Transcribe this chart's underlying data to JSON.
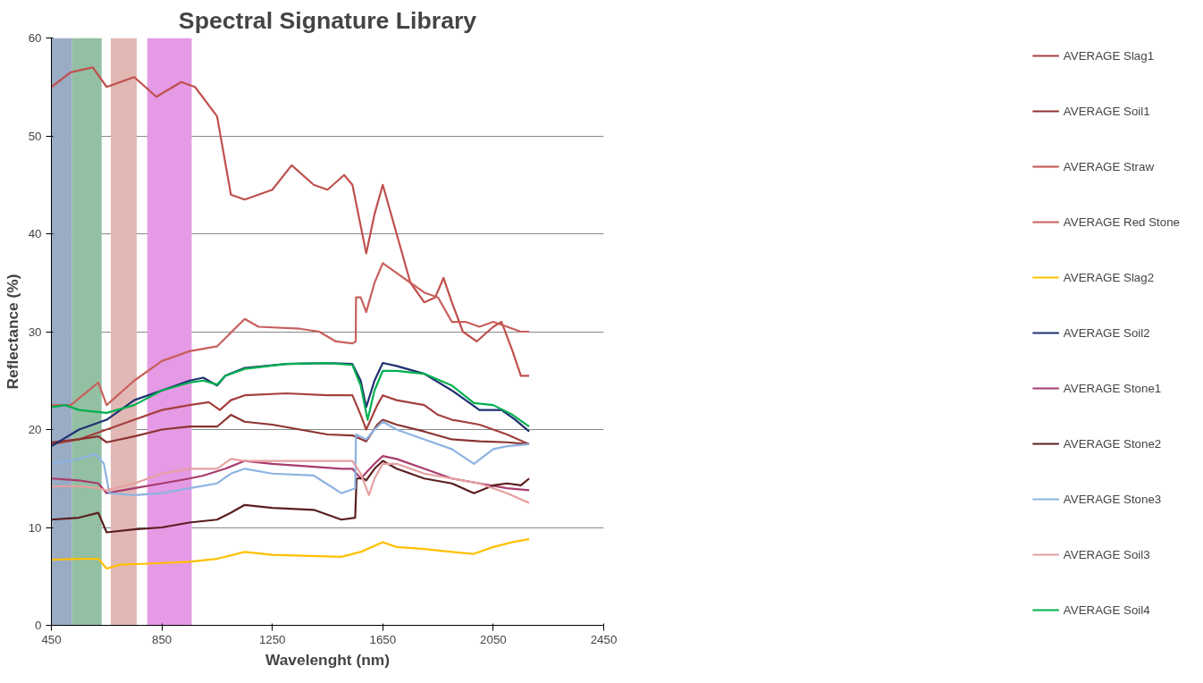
{
  "chart_data": {
    "type": "line",
    "title": "Spectral Signature Library",
    "xlabel": "Wavelenght (nm)",
    "ylabel": "Reflectance (%)",
    "xlim": [
      450,
      2450
    ],
    "xticks": [
      450,
      850,
      1250,
      1650,
      2050,
      2450
    ],
    "ylim": [
      0,
      60
    ],
    "yticks": [
      0,
      10,
      20,
      30,
      40,
      50,
      60
    ],
    "grid": "y",
    "legend": "right",
    "line_style": "solid",
    "bands": [
      {
        "axis": "x",
        "from": 450,
        "to": 525,
        "color": "#9aabc4"
      },
      {
        "axis": "x",
        "from": 525,
        "to": 632,
        "color": "#93bfa3"
      },
      {
        "axis": "x",
        "from": 665,
        "to": 759,
        "color": "#e2b8b5"
      },
      {
        "axis": "x",
        "from": 797,
        "to": 958,
        "color": "#e59ae5"
      }
    ],
    "series": [
      {
        "name": "AVERAGE Slag1",
        "color": "#a5403d",
        "x": [
          450,
          550,
          650,
          750,
          850,
          950,
          1020,
          1060,
          1100,
          1150,
          1300,
          1450,
          1540,
          1570,
          1590,
          1630,
          1650,
          1700,
          1800,
          1850,
          1900,
          2000,
          2100,
          2180
        ],
        "values": [
          18.5,
          19,
          20,
          21,
          22,
          22.5,
          22.8,
          22,
          23,
          23.5,
          23.7,
          23.5,
          23.5,
          21.5,
          20,
          22.5,
          23.5,
          23,
          22.5,
          21.5,
          21,
          20.5,
          19.5,
          18.5
        ]
      },
      {
        "name": "AVERAGE Soil1",
        "color": "#8b3330",
        "x": [
          450,
          550,
          620,
          650,
          750,
          850,
          950,
          1050,
          1100,
          1150,
          1250,
          1350,
          1450,
          1540,
          1590,
          1630,
          1650,
          1700,
          1800,
          1900,
          2000,
          2100,
          2180
        ],
        "values": [
          18.7,
          19,
          19.3,
          18.7,
          19.3,
          20,
          20.3,
          20.3,
          21.5,
          20.8,
          20.5,
          20,
          19.5,
          19.4,
          18.8,
          20.5,
          21,
          20.5,
          19.8,
          19,
          18.8,
          18.7,
          18.5
        ]
      },
      {
        "name": "AVERAGE Straw",
        "color": "#c0504d",
        "x": [
          450,
          520,
          600,
          650,
          750,
          830,
          920,
          970,
          1050,
          1100,
          1150,
          1250,
          1320,
          1400,
          1450,
          1510,
          1540,
          1590,
          1620,
          1650,
          1700,
          1750,
          1800,
          1840,
          1870,
          1900,
          1940,
          1990,
          2050,
          2080,
          2120,
          2150,
          2180
        ],
        "values": [
          55,
          56.5,
          57,
          55,
          56,
          54,
          55.5,
          55,
          52,
          44,
          43.5,
          44.5,
          47,
          45,
          44.5,
          46,
          45,
          38,
          42,
          45,
          40,
          35,
          33,
          33.5,
          35.5,
          33,
          30,
          29,
          30.5,
          31,
          28,
          25.5,
          25.5
        ]
      },
      {
        "name": "AVERAGE Red Stone",
        "color": "#c8605c",
        "x": [
          450,
          520,
          620,
          650,
          750,
          850,
          950,
          1050,
          1150,
          1200,
          1350,
          1420,
          1480,
          1540,
          1552,
          1553,
          1570,
          1590,
          1620,
          1650,
          1700,
          1750,
          1800,
          1850,
          1900,
          1950,
          2000,
          2050,
          2100,
          2150,
          2180
        ],
        "values": [
          22.5,
          22.5,
          24.8,
          22.5,
          25,
          27,
          28,
          28.5,
          31.3,
          30.5,
          30.3,
          30,
          29,
          28.8,
          29,
          33.5,
          33.5,
          32,
          35,
          37,
          36,
          35,
          34,
          33.5,
          31,
          31,
          30.5,
          31,
          30.5,
          30,
          30
        ]
      },
      {
        "name": "AVERAGE Slag2",
        "color": "#ffc000",
        "x": [
          450,
          550,
          620,
          650,
          700,
          800,
          950,
          1050,
          1150,
          1250,
          1500,
          1570,
          1650,
          1700,
          1800,
          1900,
          1980,
          2050,
          2120,
          2180
        ],
        "values": [
          6.7,
          6.8,
          6.8,
          5.8,
          6.2,
          6.3,
          6.5,
          6.8,
          7.5,
          7.2,
          7,
          7.5,
          8.5,
          8,
          7.8,
          7.5,
          7.3,
          8,
          8.5,
          8.8
        ]
      },
      {
        "name": "AVERAGE Soil2",
        "color": "#1f3070",
        "x": [
          450,
          550,
          650,
          750,
          850,
          950,
          1000,
          1050,
          1080,
          1150,
          1300,
          1450,
          1540,
          1570,
          1590,
          1620,
          1650,
          1700,
          1800,
          1900,
          1950,
          2000,
          2080,
          2130,
          2180
        ],
        "values": [
          18.3,
          20,
          21,
          23,
          24,
          25,
          25.3,
          24.5,
          25.5,
          26.3,
          26.7,
          26.8,
          26.7,
          25,
          22.3,
          25,
          26.8,
          26.5,
          25.7,
          24,
          23,
          22,
          22,
          21,
          19.8
        ]
      },
      {
        "name": "AVERAGE Stone1",
        "color": "#a83c6c",
        "x": [
          450,
          550,
          620,
          650,
          750,
          850,
          950,
          1000,
          1080,
          1150,
          1250,
          1400,
          1500,
          1540,
          1570,
          1620,
          1650,
          1700,
          1800,
          1900,
          2000,
          2100,
          2180
        ],
        "values": [
          15,
          14.8,
          14.5,
          13.5,
          14,
          14.5,
          15,
          15.3,
          16,
          16.8,
          16.5,
          16.2,
          16,
          16,
          15,
          16.5,
          17.3,
          17,
          16,
          15,
          14.5,
          14,
          13.8
        ]
      },
      {
        "name": "AVERAGE Stone2",
        "color": "#5a1e1e",
        "x": [
          450,
          550,
          620,
          650,
          750,
          850,
          950,
          1050,
          1100,
          1150,
          1250,
          1400,
          1500,
          1550,
          1555,
          1580,
          1590,
          1620,
          1650,
          1700,
          1800,
          1900,
          1980,
          2050,
          2100,
          2150,
          2180
        ],
        "values": [
          10.8,
          11,
          11.5,
          9.5,
          9.8,
          10,
          10.5,
          10.8,
          11.5,
          12.3,
          12,
          11.8,
          10.8,
          11,
          15,
          15,
          14.8,
          16,
          16.8,
          16,
          15,
          14.5,
          13.5,
          14.3,
          14.5,
          14.3,
          15
        ]
      },
      {
        "name": "AVERAGE Stone3",
        "color": "#8db3e2",
        "x": [
          450,
          550,
          610,
          640,
          660,
          750,
          850,
          950,
          1050,
          1100,
          1150,
          1250,
          1400,
          1500,
          1550,
          1553,
          1590,
          1620,
          1650,
          1700,
          1800,
          1900,
          1980,
          2050,
          2100,
          2180
        ],
        "values": [
          16.5,
          17,
          17.5,
          16.5,
          13.5,
          13.3,
          13.5,
          14,
          14.5,
          15.5,
          16,
          15.5,
          15.3,
          13.5,
          14,
          19.5,
          19,
          20,
          20.8,
          20,
          19,
          18,
          16.5,
          18,
          18.3,
          18.5
        ]
      },
      {
        "name": "AVERAGE Soil3",
        "color": "#e6a0a0",
        "x": [
          450,
          550,
          620,
          650,
          750,
          850,
          950,
          1050,
          1100,
          1150,
          1300,
          1450,
          1540,
          1570,
          1600,
          1620,
          1650,
          1700,
          1800,
          1900,
          2000,
          2100,
          2180
        ],
        "values": [
          14.2,
          14.2,
          14,
          13.8,
          14.5,
          15.5,
          16,
          16,
          17,
          16.8,
          16.8,
          16.8,
          16.8,
          15.5,
          13.3,
          15,
          16.5,
          16.5,
          15.5,
          15,
          14.5,
          13.5,
          12.5
        ]
      },
      {
        "name": "AVERAGE Soil4",
        "color": "#00b050",
        "x": [
          450,
          500,
          550,
          650,
          750,
          850,
          950,
          1000,
          1050,
          1080,
          1150,
          1300,
          1450,
          1540,
          1570,
          1595,
          1620,
          1650,
          1700,
          1800,
          1900,
          1980,
          2050,
          2120,
          2180
        ],
        "values": [
          22.3,
          22.5,
          22,
          21.7,
          22.5,
          24,
          24.8,
          25,
          24.6,
          25.5,
          26.2,
          26.7,
          26.8,
          26.6,
          24.5,
          21,
          24,
          26,
          26,
          25.7,
          24.5,
          22.7,
          22.5,
          21.5,
          20.3
        ]
      }
    ]
  }
}
